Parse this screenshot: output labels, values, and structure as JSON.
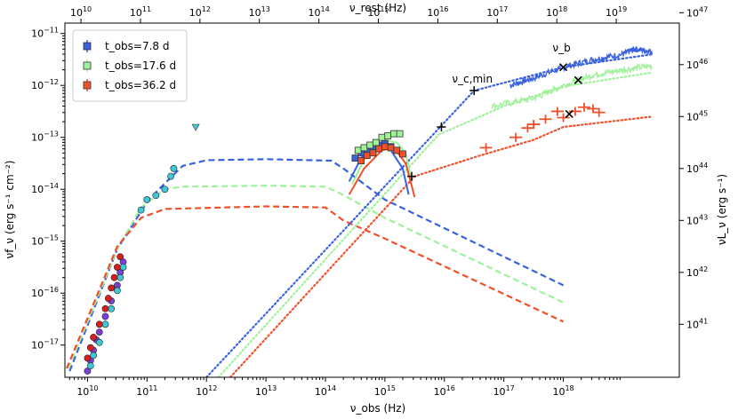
{
  "chart_data": {
    "type": "scatter",
    "title": "",
    "xlabel": "ν_obs (Hz)",
    "x2label": "ν_rest (Hz)",
    "ylabel": "νf_ν (erg s⁻¹ cm⁻²)",
    "y2label": "νL_ν (erg s⁻¹)",
    "xscale": "log",
    "yscale": "log",
    "xlim_log": [
      9.62,
      19.95
    ],
    "ylim_log": [
      -17.62,
      -10.8
    ],
    "xticks": [
      "10^10",
      "10^11",
      "10^12",
      "10^13",
      "10^14",
      "10^15",
      "10^16",
      "10^17",
      "10^18"
    ],
    "x2ticks": [
      "10^10",
      "10^11",
      "10^12",
      "10^13",
      "10^14",
      "10^15",
      "10^16",
      "10^17",
      "10^18",
      "10^19"
    ],
    "yticks": [
      "10^-17",
      "10^-16",
      "10^-15",
      "10^-14",
      "10^-13",
      "10^-12",
      "10^-11"
    ],
    "y2ticks": [
      "10^41",
      "10^42",
      "10^43",
      "10^44",
      "10^45",
      "10^46",
      "10^47"
    ],
    "legend": [
      {
        "label": "t_obs=7.8 d",
        "color": "#3a62e0"
      },
      {
        "label": "t_obs=17.6 d",
        "color": "#9ef29a"
      },
      {
        "label": "t_obs=36.2 d",
        "color": "#f0502a"
      }
    ],
    "legend_position": "top-left",
    "annotations": [
      {
        "text": "ν_c,min",
        "x": 16.5,
        "y": -12.08
      },
      {
        "text": "ν_b",
        "x": 18.0,
        "y": -11.48
      }
    ],
    "series": [
      {
        "name": "t_obs=7.8 d model (dashed)",
        "color": "#3a62e0",
        "style": "dashed",
        "points": [
          [
            9.7,
            -17.5
          ],
          [
            10.5,
            -15.15
          ],
          [
            11.0,
            -14.25
          ],
          [
            11.2,
            -14.0
          ],
          [
            11.6,
            -13.55
          ],
          [
            12.0,
            -13.44
          ],
          [
            13.0,
            -13.42
          ],
          [
            14.1,
            -13.45
          ],
          [
            14.3,
            -13.6
          ],
          [
            15.0,
            -14.2
          ],
          [
            18.0,
            -15.85
          ]
        ]
      },
      {
        "name": "t_obs=17.6 d model (dashed)",
        "color": "#9ef29a",
        "style": "dashed",
        "points": [
          [
            9.68,
            -17.45
          ],
          [
            10.5,
            -15.15
          ],
          [
            10.9,
            -14.35
          ],
          [
            11.3,
            -14.0
          ],
          [
            11.6,
            -13.95
          ],
          [
            13.0,
            -13.93
          ],
          [
            14.0,
            -13.95
          ],
          [
            14.2,
            -14.05
          ],
          [
            15.0,
            -14.55
          ],
          [
            18.0,
            -16.18
          ]
        ]
      },
      {
        "name": "t_obs=36.2 d model (dashed)",
        "color": "#f0502a",
        "style": "dashed",
        "points": [
          [
            9.65,
            -17.45
          ],
          [
            10.5,
            -15.1
          ],
          [
            10.9,
            -14.55
          ],
          [
            11.3,
            -14.38
          ],
          [
            13.0,
            -14.33
          ],
          [
            14.0,
            -14.35
          ],
          [
            14.3,
            -14.6
          ],
          [
            15.0,
            -14.95
          ],
          [
            18.0,
            -16.55
          ]
        ]
      },
      {
        "name": "t_obs=7.8 d X-ray model (dotted)",
        "color": "#3a62e0",
        "style": "dotted",
        "points": [
          [
            12.0,
            -17.62
          ],
          [
            16.5,
            -12.1
          ],
          [
            17.0,
            -11.95
          ],
          [
            18.0,
            -11.65
          ],
          [
            19.5,
            -11.4
          ]
        ]
      },
      {
        "name": "t_obs=17.6 d X-ray model (dotted)",
        "color": "#9ef29a",
        "style": "dotted",
        "points": [
          [
            12.2,
            -17.62
          ],
          [
            15.9,
            -12.95
          ],
          [
            17.0,
            -12.4
          ],
          [
            18.0,
            -12.02
          ],
          [
            19.5,
            -11.75
          ]
        ]
      },
      {
        "name": "t_obs=36.2 d X-ray model (dotted)",
        "color": "#f0502a",
        "style": "dotted",
        "points": [
          [
            12.4,
            -17.62
          ],
          [
            15.5,
            -13.75
          ],
          [
            16.6,
            -13.35
          ],
          [
            17.5,
            -13.05
          ],
          [
            18.0,
            -12.8
          ],
          [
            19.5,
            -12.6
          ]
        ]
      },
      {
        "name": "t_obs=7.8 d optical model",
        "color": "#3a62e0",
        "style": "solid",
        "points": [
          [
            14.4,
            -13.85
          ],
          [
            14.6,
            -13.4
          ],
          [
            14.9,
            -13.15
          ],
          [
            15.1,
            -13.25
          ],
          [
            15.3,
            -13.6
          ],
          [
            15.4,
            -14.1
          ]
        ]
      },
      {
        "name": "t_obs=17.6 d optical model",
        "color": "#9ef29a",
        "style": "solid",
        "points": [
          [
            14.45,
            -13.9
          ],
          [
            14.7,
            -13.3
          ],
          [
            15.0,
            -13.05
          ],
          [
            15.2,
            -13.1
          ],
          [
            15.35,
            -13.3
          ],
          [
            15.45,
            -13.85
          ]
        ]
      },
      {
        "name": "t_obs=36.2 d optical model",
        "color": "#f0502a",
        "style": "solid",
        "points": [
          [
            14.4,
            -14.1
          ],
          [
            14.65,
            -13.6
          ],
          [
            14.95,
            -13.25
          ],
          [
            15.15,
            -13.2
          ],
          [
            15.35,
            -13.5
          ],
          [
            15.5,
            -14.15
          ]
        ]
      },
      {
        "name": "t_obs=7.8 d X-ray spectrum",
        "color": "#3a62e0",
        "style": "noisy",
        "points": [
          [
            17.1,
            -12.0
          ],
          [
            17.5,
            -11.86
          ],
          [
            18.0,
            -11.65
          ],
          [
            18.5,
            -11.5
          ],
          [
            19.0,
            -11.4
          ],
          [
            19.2,
            -11.3
          ],
          [
            19.5,
            -11.35
          ]
        ]
      },
      {
        "name": "t_obs=17.6 d X-ray spectrum",
        "color": "#9ef29a",
        "style": "noisy",
        "points": [
          [
            16.8,
            -12.4
          ],
          [
            17.5,
            -12.25
          ],
          [
            18.0,
            -12.0
          ],
          [
            18.5,
            -11.8
          ],
          [
            19.0,
            -11.7
          ],
          [
            19.5,
            -11.62
          ]
        ]
      },
      {
        "name": "t_obs=7.8 d photometry",
        "color": "#3a62e0",
        "marker": "square",
        "points": [
          [
            14.5,
            -13.4
          ],
          [
            14.6,
            -13.3
          ],
          [
            14.7,
            -13.25
          ],
          [
            14.8,
            -13.2
          ],
          [
            14.9,
            -13.15
          ],
          [
            15.0,
            -13.12
          ],
          [
            15.1,
            -13.18
          ],
          [
            15.2,
            -13.25
          ]
        ]
      },
      {
        "name": "t_obs=17.6 d photometry",
        "color": "#9ef29a",
        "marker": "square",
        "points": [
          [
            14.55,
            -13.25
          ],
          [
            14.65,
            -13.2
          ],
          [
            14.75,
            -13.15
          ],
          [
            14.85,
            -13.1
          ],
          [
            14.95,
            -13.0
          ],
          [
            15.05,
            -12.97
          ],
          [
            15.15,
            -12.93
          ],
          [
            15.25,
            -12.93
          ]
        ]
      },
      {
        "name": "t_obs=36.2 d photometry",
        "color": "#f0502a",
        "marker": "square",
        "points": [
          [
            14.6,
            -13.45
          ],
          [
            14.7,
            -13.35
          ],
          [
            14.8,
            -13.3
          ],
          [
            14.9,
            -13.22
          ],
          [
            15.0,
            -13.18
          ],
          [
            15.1,
            -13.2
          ],
          [
            15.2,
            -13.25
          ],
          [
            15.3,
            -13.32
          ]
        ]
      },
      {
        "name": "t_obs=36.2 d X-ray data",
        "color": "#f0502a",
        "marker": "cross",
        "points": [
          [
            16.7,
            -13.2
          ],
          [
            17.2,
            -13.0
          ],
          [
            17.4,
            -12.82
          ],
          [
            17.5,
            -12.75
          ],
          [
            17.7,
            -12.65
          ],
          [
            17.9,
            -12.5
          ],
          [
            18.0,
            -12.62
          ],
          [
            18.2,
            -12.5
          ],
          [
            18.35,
            -12.42
          ],
          [
            18.5,
            -12.45
          ],
          [
            18.6,
            -12.52
          ]
        ]
      },
      {
        "name": "radio t_obs=7.8 d",
        "color": "#7b3fd6",
        "marker": "circle",
        "points": [
          [
            10.0,
            -17.5
          ],
          [
            10.05,
            -17.3
          ],
          [
            10.1,
            -17.1
          ],
          [
            10.15,
            -16.9
          ],
          [
            10.2,
            -16.75
          ],
          [
            10.3,
            -16.45
          ],
          [
            10.4,
            -16.15
          ],
          [
            10.5,
            -15.85
          ],
          [
            10.55,
            -15.6
          ],
          [
            10.6,
            -15.4
          ]
        ]
      },
      {
        "name": "radio t_obs=17.6 d",
        "color": "#3ec7d6",
        "marker": "circle",
        "points": [
          [
            10.05,
            -17.4
          ],
          [
            10.1,
            -17.2
          ],
          [
            10.2,
            -16.95
          ],
          [
            10.3,
            -16.6
          ],
          [
            10.4,
            -16.3
          ],
          [
            10.5,
            -15.95
          ],
          [
            10.55,
            -15.7
          ],
          [
            10.6,
            -15.5
          ],
          [
            10.9,
            -14.4
          ],
          [
            11.0,
            -14.2
          ],
          [
            11.15,
            -14.12
          ],
          [
            11.3,
            -14.0
          ],
          [
            11.4,
            -13.75
          ],
          [
            11.45,
            -13.6
          ]
        ]
      },
      {
        "name": "radio t_obs=36.2 d",
        "color": "#d81f1f",
        "marker": "circle",
        "points": [
          [
            10.0,
            -17.25
          ],
          [
            10.05,
            -17.05
          ],
          [
            10.1,
            -16.85
          ],
          [
            10.2,
            -16.6
          ],
          [
            10.3,
            -16.3
          ],
          [
            10.35,
            -16.1
          ],
          [
            10.4,
            -15.9
          ],
          [
            10.45,
            -15.7
          ],
          [
            10.5,
            -15.5
          ],
          [
            10.55,
            -15.3
          ]
        ]
      },
      {
        "name": "upper limit",
        "color": "#3ec7d6",
        "marker": "triangle-down",
        "points": [
          [
            11.82,
            -12.8
          ]
        ]
      },
      {
        "name": "ν_c,min markers",
        "color": "#000000",
        "marker": "plus",
        "points": [
          [
            15.45,
            -13.75
          ],
          [
            15.95,
            -12.8
          ],
          [
            16.5,
            -12.1
          ]
        ]
      },
      {
        "name": "ν_b markers",
        "color": "#000000",
        "marker": "x",
        "points": [
          [
            18.0,
            -11.65
          ],
          [
            18.25,
            -11.9
          ],
          [
            18.1,
            -12.55
          ]
        ]
      }
    ]
  }
}
